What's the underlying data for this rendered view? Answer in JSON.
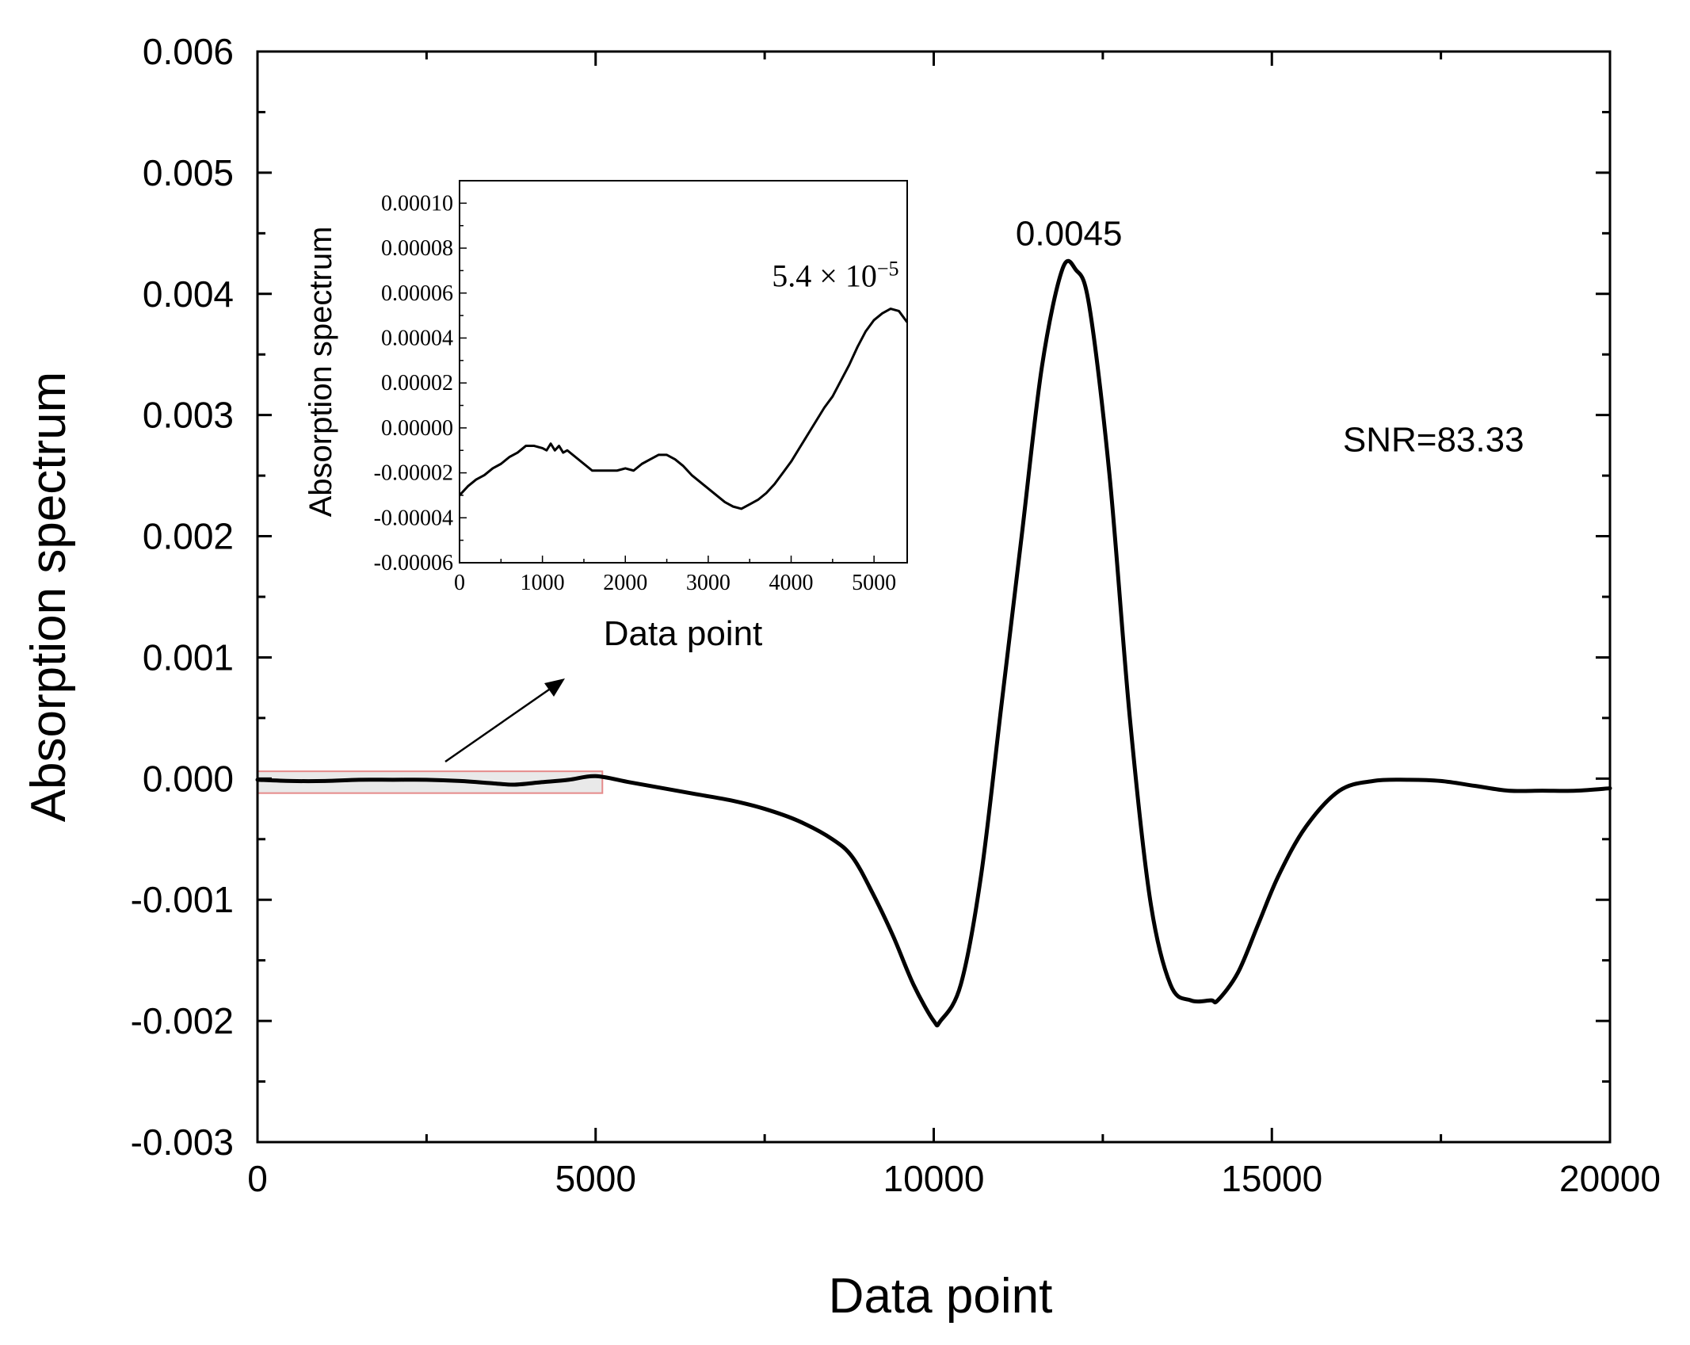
{
  "chart_data": [
    {
      "id": "main",
      "type": "line",
      "xlabel": "Data point",
      "ylabel": "Absorption spectrum",
      "xlim": [
        0,
        20000
      ],
      "ylim": [
        -0.003,
        0.006
      ],
      "xticks": [
        0,
        5000,
        10000,
        15000,
        20000
      ],
      "xtick_labels": [
        "0",
        "5000",
        "10000",
        "15000",
        "20000"
      ],
      "yticks": [
        -0.003,
        -0.002,
        -0.001,
        0.0,
        0.001,
        0.002,
        0.003,
        0.004,
        0.005,
        0.006
      ],
      "ytick_labels": [
        "-0.003",
        "-0.002",
        "-0.001",
        "0.000",
        "0.001",
        "0.002",
        "0.003",
        "0.004",
        "0.005",
        "0.006"
      ],
      "grid": false,
      "highlight_region": {
        "x": [
          0,
          5100
        ],
        "y": [
          -0.00012,
          6e-05
        ]
      },
      "series": [
        {
          "color": "#000000",
          "x": [
            0,
            500,
            1000,
            1500,
            2000,
            2500,
            3000,
            3500,
            3800,
            4200,
            4600,
            5000,
            5500,
            6000,
            6500,
            7000,
            7500,
            8000,
            8500,
            8800,
            9100,
            9400,
            9700,
            10000,
            10100,
            10400,
            10700,
            11000,
            11300,
            11600,
            11900,
            12100,
            12300,
            12600,
            12900,
            13200,
            13500,
            13800,
            14100,
            14200,
            14500,
            14800,
            15100,
            15500,
            16000,
            16500,
            17000,
            17500,
            18000,
            18500,
            19000,
            19500,
            20000
          ],
          "y": [
            -1e-05,
            -2e-05,
            -2e-05,
            -1e-05,
            -1e-05,
            -1e-05,
            -2e-05,
            -4e-05,
            -5e-05,
            -3e-05,
            -1e-05,
            2e-05,
            -3e-05,
            -8e-05,
            -0.00013,
            -0.00018,
            -0.00025,
            -0.00035,
            -0.0005,
            -0.00065,
            -0.00095,
            -0.0013,
            -0.0017,
            -0.002,
            -0.002,
            -0.0017,
            -0.0008,
            0.0006,
            0.002,
            0.0034,
            0.0042,
            0.0042,
            0.0039,
            0.0025,
            0.0005,
            -0.001,
            -0.0017,
            -0.00183,
            -0.00183,
            -0.00183,
            -0.0016,
            -0.0012,
            -0.0008,
            -0.0004,
            -0.0001,
            -2e-05,
            -1e-05,
            -2e-05,
            -6e-05,
            -0.0001,
            -0.0001,
            -0.0001,
            -8e-05
          ]
        }
      ],
      "annotations": [
        {
          "text": "0.0045",
          "x": 12000,
          "y": 0.0044
        },
        {
          "text": "SNR=83.33",
          "x": 16050,
          "y": 0.0027
        }
      ]
    },
    {
      "id": "inset",
      "type": "line",
      "xlabel": "Data point",
      "ylabel": "Absorption spectrum",
      "xlim": [
        0,
        5400
      ],
      "ylim": [
        -6e-05,
        0.00011
      ],
      "xticks": [
        0,
        1000,
        2000,
        3000,
        4000,
        5000
      ],
      "xtick_labels": [
        "0",
        "1000",
        "2000",
        "3000",
        "4000",
        "5000"
      ],
      "yticks": [
        -6e-05,
        -4e-05,
        -2e-05,
        0.0,
        2e-05,
        4e-05,
        6e-05,
        8e-05,
        0.0001
      ],
      "ytick_labels": [
        "-0.00006",
        "-0.00004",
        "-0.00002",
        "0.00000",
        "0.00002",
        "0.00004",
        "0.00006",
        "0.00008",
        "0.00010"
      ],
      "grid": false,
      "series": [
        {
          "color": "#000000",
          "x": [
            0,
            100,
            200,
            300,
            400,
            500,
            600,
            700,
            800,
            900,
            1000,
            1050,
            1100,
            1150,
            1200,
            1250,
            1300,
            1400,
            1500,
            1600,
            1700,
            1800,
            1900,
            2000,
            2100,
            2200,
            2300,
            2400,
            2500,
            2600,
            2700,
            2800,
            2900,
            3000,
            3100,
            3200,
            3300,
            3400,
            3500,
            3600,
            3700,
            3800,
            3900,
            4000,
            4100,
            4200,
            4300,
            4400,
            4500,
            4600,
            4700,
            4800,
            4900,
            5000,
            5100,
            5200,
            5300,
            5400
          ],
          "y": [
            -3e-05,
            -2.6e-05,
            -2.3e-05,
            -2.1e-05,
            -1.8e-05,
            -1.6e-05,
            -1.3e-05,
            -1.1e-05,
            -8e-06,
            -8e-06,
            -9e-06,
            -1e-05,
            -7e-06,
            -1e-05,
            -8e-06,
            -1.1e-05,
            -1e-05,
            -1.3e-05,
            -1.6e-05,
            -1.9e-05,
            -1.9e-05,
            -1.9e-05,
            -1.9e-05,
            -1.8e-05,
            -1.9e-05,
            -1.6e-05,
            -1.4e-05,
            -1.2e-05,
            -1.2e-05,
            -1.4e-05,
            -1.7e-05,
            -2.1e-05,
            -2.4e-05,
            -2.7e-05,
            -3e-05,
            -3.3e-05,
            -3.5e-05,
            -3.6e-05,
            -3.4e-05,
            -3.2e-05,
            -2.9e-05,
            -2.5e-05,
            -2e-05,
            -1.5e-05,
            -9e-06,
            -3e-06,
            3e-06,
            9e-06,
            1.4e-05,
            2.1e-05,
            2.8e-05,
            3.6e-05,
            4.3e-05,
            4.8e-05,
            5.1e-05,
            5.3e-05,
            5.2e-05,
            4.7e-05
          ]
        }
      ],
      "annotations": [
        {
          "text": "5.4 × 10",
          "sup": "−5",
          "x": 5300,
          "y": 6.3e-05
        }
      ]
    }
  ]
}
